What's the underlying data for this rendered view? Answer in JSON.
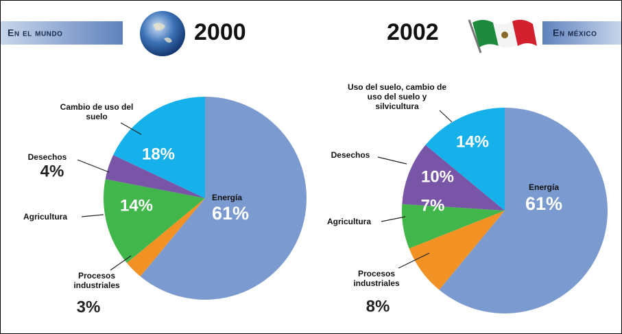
{
  "chart_data": [
    {
      "type": "pie",
      "title": "2000",
      "subtitle": "En el mundo",
      "categories": [
        "Energía",
        "Procesos industriales",
        "Agricultura",
        "Desechos",
        "Cambio de uso del suelo"
      ],
      "values": [
        61,
        3,
        14,
        4,
        18
      ],
      "value_labels": [
        "61%",
        "3%",
        "14%",
        "4%",
        "18%"
      ],
      "colors": [
        "#7b9bd0",
        "#f39224",
        "#41b64a",
        "#7855a6",
        "#16b1ea"
      ]
    },
    {
      "type": "pie",
      "title": "2002",
      "subtitle": "En méxico",
      "categories": [
        "Energía",
        "Procesos industriales",
        "Agricultura",
        "Desechos",
        "Uso del suelo, cambio de uso del suelo y silvicultura"
      ],
      "values": [
        61,
        8,
        7,
        10,
        14
      ],
      "value_labels": [
        "61%",
        "8%",
        "7%",
        "10%",
        "14%"
      ],
      "colors": [
        "#7b9bd0",
        "#f39224",
        "#41b64a",
        "#7855a6",
        "#16b1ea"
      ]
    }
  ]
}
